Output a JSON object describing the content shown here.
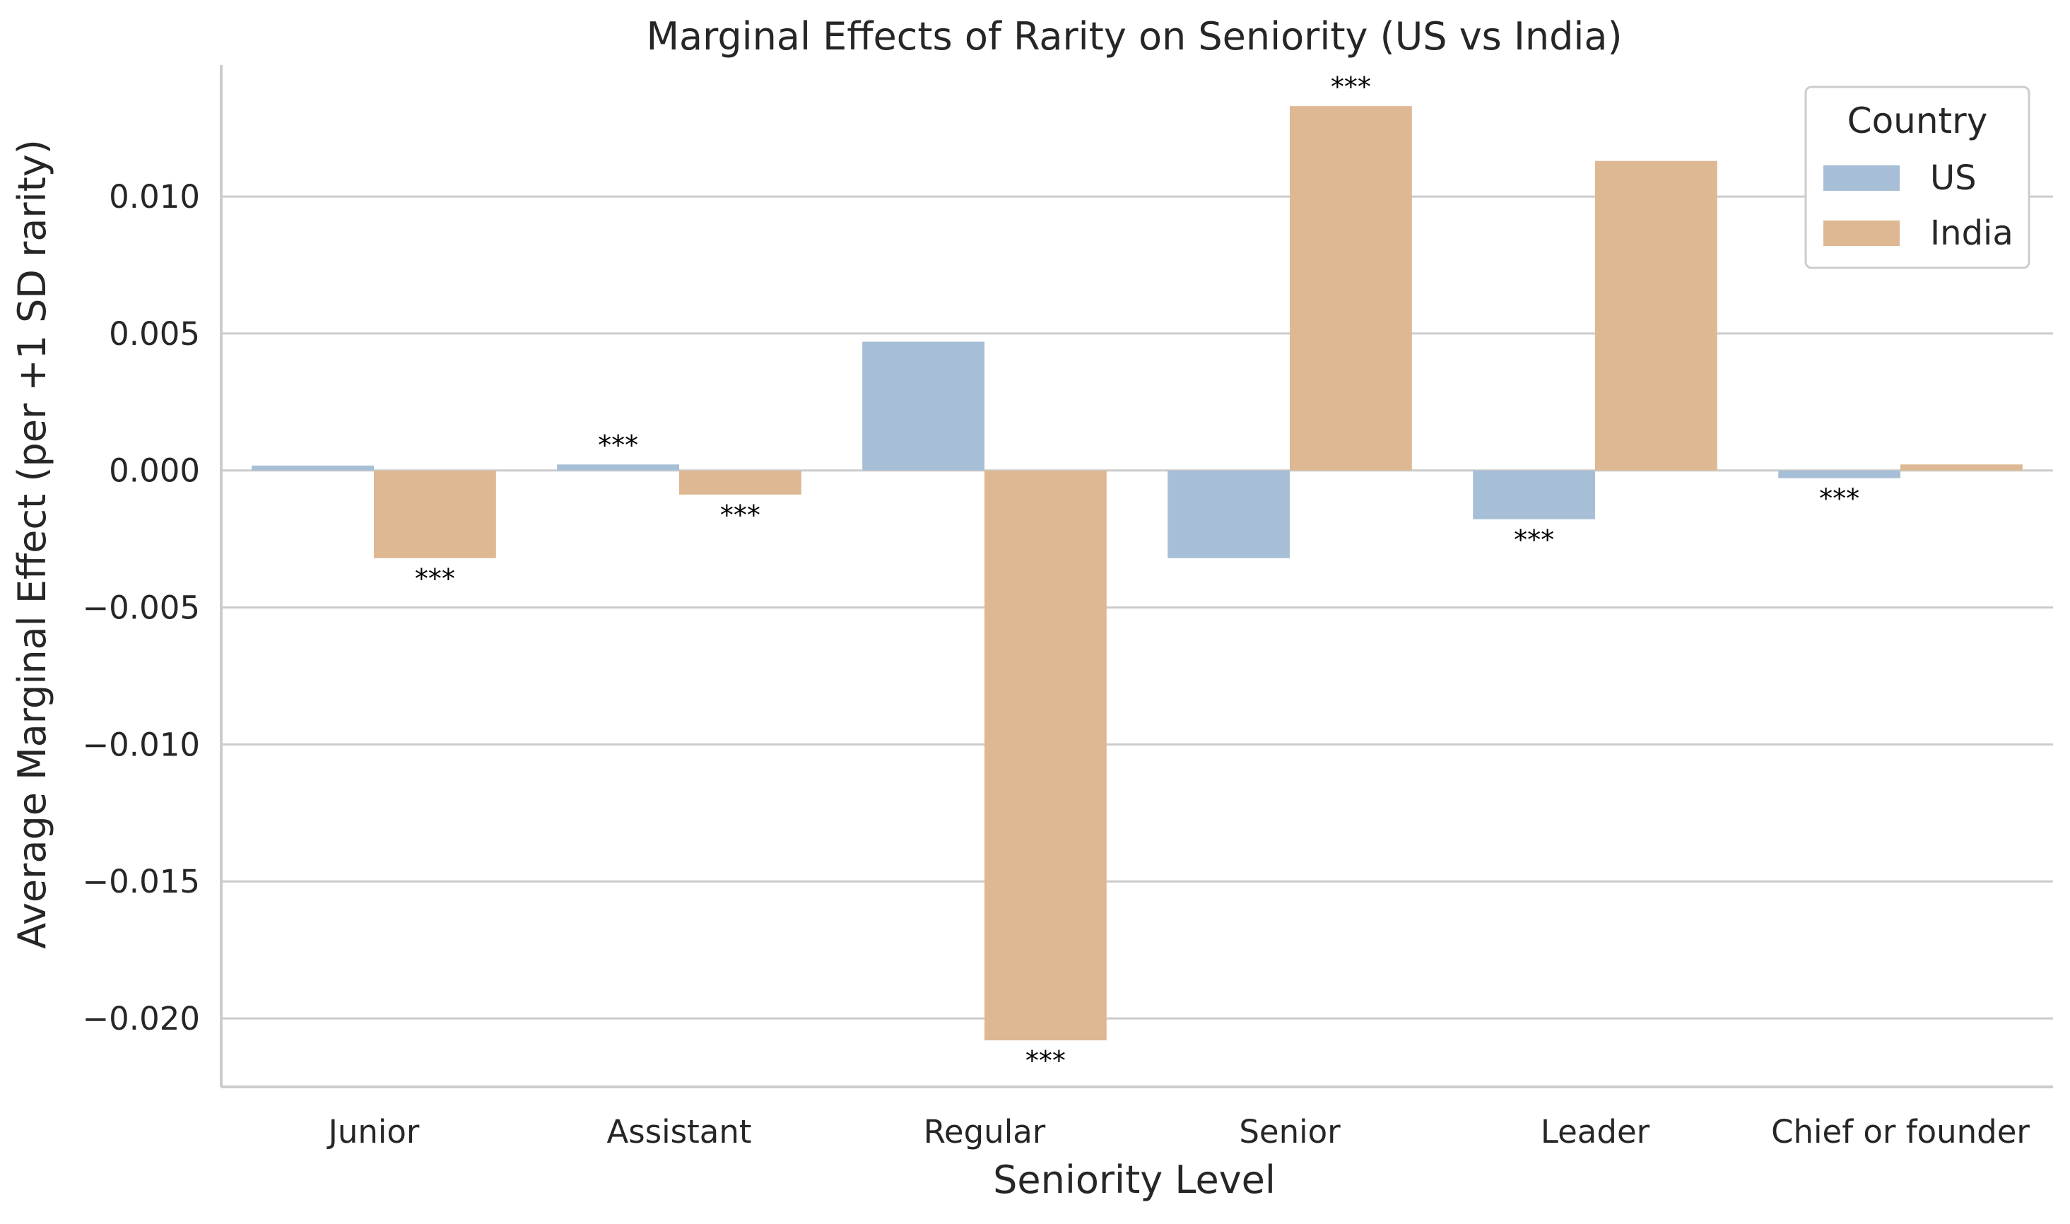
{
  "chart_data": {
    "type": "bar",
    "title": "Marginal Effects of Rarity on Seniority (US vs India)",
    "xlabel": "Seniority Level",
    "ylabel": "Average Marginal Effect (per +1 SD rarity)",
    "categories": [
      "Junior",
      "Assistant",
      "Regular",
      "Senior",
      "Leader",
      "Chief or founder"
    ],
    "series": [
      {
        "name": "US",
        "color": "#a7bfd6",
        "values": [
          0.00018,
          0.00022,
          0.0047,
          -0.0032,
          -0.00178,
          -0.00028
        ],
        "significance": [
          "",
          "***",
          "",
          "",
          "***",
          "***"
        ]
      },
      {
        "name": "India",
        "color": "#ddb893",
        "values": [
          -0.0032,
          -0.00088,
          -0.0208,
          0.0133,
          0.0113,
          0.00022
        ],
        "significance": [
          "***",
          "***",
          "***",
          "***",
          "",
          ""
        ]
      }
    ],
    "ylim": [
      -0.0225,
      0.0148
    ],
    "yticks": [
      -0.02,
      -0.015,
      -0.01,
      -0.005,
      0.0,
      0.005,
      0.01
    ],
    "ytick_labels": [
      "−0.020",
      "−0.015",
      "−0.010",
      "−0.005",
      "0.000",
      "0.005",
      "0.010"
    ],
    "grid": "horizontal",
    "legend": {
      "title": "Country",
      "placement": "top-right"
    }
  }
}
